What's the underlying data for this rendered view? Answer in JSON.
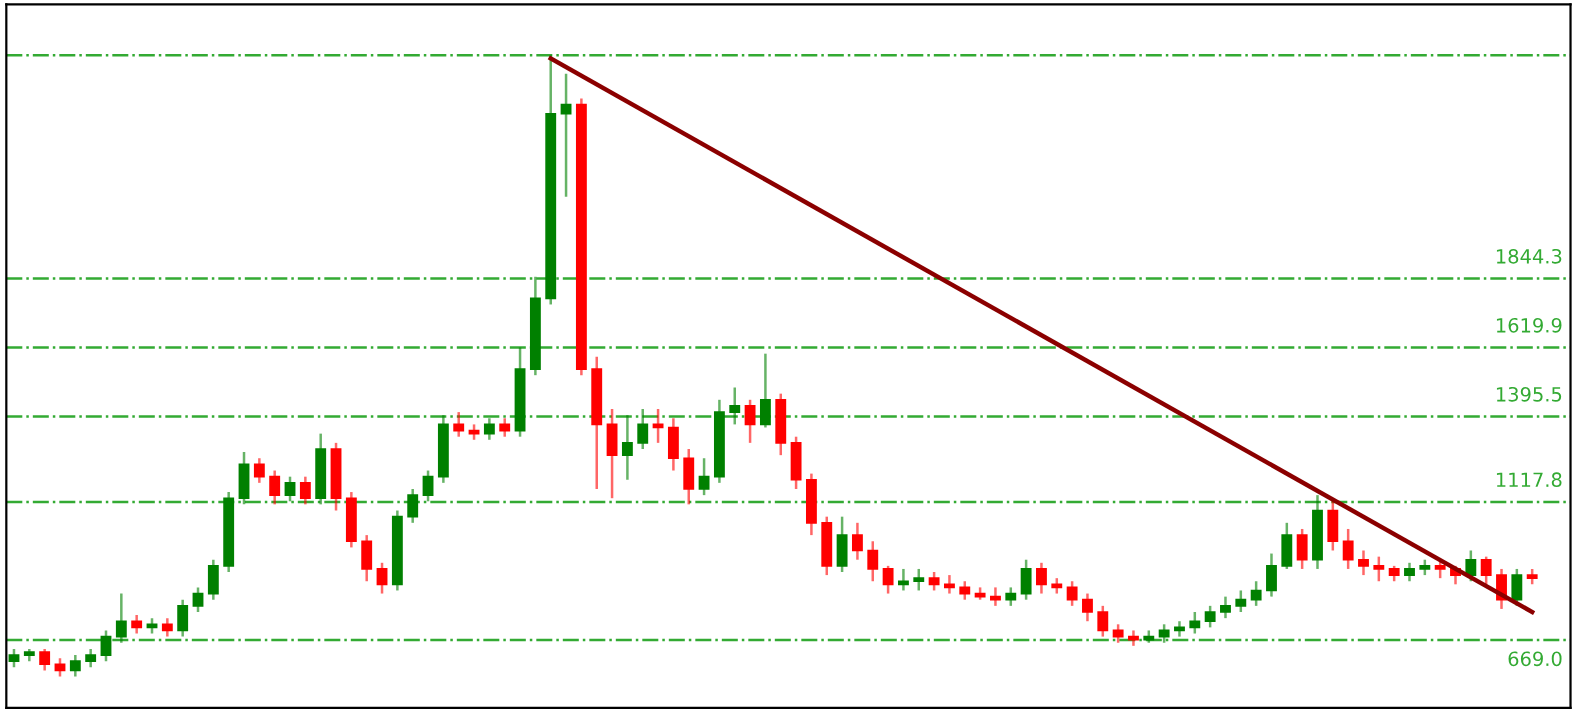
{
  "chart_data": {
    "type": "candlestick",
    "categories": [
      null,
      null,
      null,
      null,
      null,
      null,
      null,
      null,
      null,
      null,
      null,
      null,
      null,
      null,
      null,
      null,
      null,
      null,
      null,
      null,
      null,
      null,
      null,
      null,
      null,
      null,
      null,
      null,
      null,
      null,
      null,
      null,
      null,
      null,
      null,
      null,
      null,
      null,
      null,
      null,
      null,
      null,
      null,
      null,
      null,
      null,
      null,
      null,
      null,
      null,
      null,
      null,
      null,
      null,
      null,
      null,
      null,
      null,
      null,
      null,
      null,
      null,
      null,
      null,
      null,
      null,
      null,
      null,
      null,
      null,
      null,
      null,
      null,
      null,
      null,
      null,
      null,
      null,
      null,
      null,
      null,
      null,
      null,
      null,
      null,
      null,
      null,
      null,
      null,
      null,
      null,
      null,
      null,
      null,
      null,
      null,
      null,
      null,
      null,
      null
    ],
    "ohlc": [
      [
        600,
        640,
        580,
        620
      ],
      [
        620,
        640,
        600,
        630
      ],
      [
        630,
        640,
        570,
        590
      ],
      [
        590,
        610,
        550,
        570
      ],
      [
        570,
        620,
        550,
        600
      ],
      [
        600,
        640,
        580,
        620
      ],
      [
        620,
        700,
        600,
        680
      ],
      [
        680,
        820,
        660,
        730
      ],
      [
        730,
        750,
        690,
        710
      ],
      [
        710,
        740,
        690,
        720
      ],
      [
        720,
        740,
        680,
        700
      ],
      [
        700,
        800,
        680,
        780
      ],
      [
        780,
        840,
        760,
        820
      ],
      [
        820,
        930,
        800,
        910
      ],
      [
        910,
        1150,
        890,
        1130
      ],
      [
        1130,
        1280,
        1110,
        1240
      ],
      [
        1240,
        1260,
        1180,
        1200
      ],
      [
        1200,
        1220,
        1110,
        1140
      ],
      [
        1140,
        1200,
        1120,
        1180
      ],
      [
        1180,
        1200,
        1110,
        1130
      ],
      [
        1130,
        1340,
        1110,
        1290
      ],
      [
        1290,
        1310,
        1090,
        1130
      ],
      [
        1130,
        1150,
        970,
        990
      ],
      [
        990,
        1010,
        860,
        900
      ],
      [
        900,
        920,
        820,
        850
      ],
      [
        850,
        1090,
        830,
        1070
      ],
      [
        1070,
        1160,
        1050,
        1140
      ],
      [
        1140,
        1220,
        1120,
        1200
      ],
      [
        1200,
        1400,
        1180,
        1370
      ],
      [
        1370,
        1410,
        1330,
        1350
      ],
      [
        1350,
        1370,
        1320,
        1340
      ],
      [
        1340,
        1390,
        1320,
        1370
      ],
      [
        1370,
        1390,
        1330,
        1350
      ],
      [
        1350,
        1620,
        1330,
        1550
      ],
      [
        1550,
        1850,
        1530,
        1780
      ],
      [
        1780,
        2570,
        1760,
        2380
      ],
      [
        2380,
        2510,
        2110,
        2410
      ],
      [
        2410,
        2430,
        1530,
        1550
      ],
      [
        1550,
        1590,
        1160,
        1370
      ],
      [
        1370,
        1420,
        1130,
        1270
      ],
      [
        1270,
        1400,
        1190,
        1310
      ],
      [
        1310,
        1420,
        1290,
        1370
      ],
      [
        1370,
        1420,
        1310,
        1360
      ],
      [
        1360,
        1390,
        1220,
        1260
      ],
      [
        1260,
        1290,
        1110,
        1160
      ],
      [
        1160,
        1260,
        1140,
        1200
      ],
      [
        1200,
        1450,
        1180,
        1410
      ],
      [
        1410,
        1490,
        1370,
        1430
      ],
      [
        1430,
        1450,
        1310,
        1370
      ],
      [
        1370,
        1600,
        1360,
        1450
      ],
      [
        1450,
        1470,
        1270,
        1310
      ],
      [
        1310,
        1330,
        1160,
        1190
      ],
      [
        1190,
        1210,
        1010,
        1050
      ],
      [
        1050,
        1070,
        880,
        910
      ],
      [
        910,
        1070,
        890,
        1010
      ],
      [
        1010,
        1050,
        930,
        960
      ],
      [
        960,
        990,
        860,
        900
      ],
      [
        900,
        910,
        820,
        850
      ],
      [
        850,
        900,
        830,
        860
      ],
      [
        860,
        900,
        830,
        870
      ],
      [
        870,
        890,
        830,
        850
      ],
      [
        850,
        880,
        820,
        840
      ],
      [
        840,
        860,
        800,
        820
      ],
      [
        820,
        840,
        800,
        810
      ],
      [
        810,
        840,
        780,
        800
      ],
      [
        800,
        840,
        780,
        820
      ],
      [
        820,
        930,
        800,
        900
      ],
      [
        900,
        920,
        820,
        850
      ],
      [
        850,
        870,
        820,
        840
      ],
      [
        840,
        860,
        780,
        800
      ],
      [
        800,
        820,
        730,
        760
      ],
      [
        760,
        780,
        680,
        700
      ],
      [
        700,
        720,
        660,
        680
      ],
      [
        680,
        700,
        650,
        670
      ],
      [
        670,
        700,
        660,
        680
      ],
      [
        680,
        720,
        660,
        700
      ],
      [
        700,
        730,
        680,
        710
      ],
      [
        710,
        760,
        690,
        730
      ],
      [
        730,
        780,
        710,
        760
      ],
      [
        760,
        810,
        740,
        780
      ],
      [
        780,
        830,
        760,
        800
      ],
      [
        800,
        860,
        780,
        830
      ],
      [
        830,
        950,
        810,
        910
      ],
      [
        910,
        1050,
        900,
        1010
      ],
      [
        1010,
        1030,
        900,
        930
      ],
      [
        930,
        1140,
        900,
        1090
      ],
      [
        1090,
        1130,
        960,
        990
      ],
      [
        990,
        1030,
        900,
        930
      ],
      [
        930,
        960,
        880,
        910
      ],
      [
        910,
        940,
        860,
        900
      ],
      [
        900,
        910,
        860,
        880
      ],
      [
        880,
        920,
        860,
        900
      ],
      [
        900,
        930,
        880,
        910
      ],
      [
        910,
        930,
        870,
        900
      ],
      [
        900,
        910,
        850,
        880
      ],
      [
        880,
        960,
        860,
        930
      ],
      [
        930,
        940,
        850,
        880
      ],
      [
        880,
        900,
        770,
        800
      ],
      [
        800,
        900,
        780,
        880
      ],
      [
        880,
        900,
        850,
        870
      ]
    ],
    "colors": [
      "#008000",
      "#008000",
      "#ff0000",
      "#ff0000",
      "#008000",
      "#008000",
      "#008000",
      "#008000",
      "#ff0000",
      "#008000",
      "#ff0000",
      "#008000",
      "#008000",
      "#008000",
      "#008000",
      "#008000",
      "#ff0000",
      "#ff0000",
      "#008000",
      "#ff0000",
      "#008000",
      "#ff0000",
      "#ff0000",
      "#ff0000",
      "#ff0000",
      "#008000",
      "#008000",
      "#008000",
      "#008000",
      "#ff0000",
      "#ff0000",
      "#008000",
      "#ff0000",
      "#008000",
      "#008000",
      "#008000",
      "#008000",
      "#ff0000",
      "#ff0000",
      "#ff0000",
      "#008000",
      "#008000",
      "#ff0000",
      "#ff0000",
      "#ff0000",
      "#008000",
      "#008000",
      "#008000",
      "#ff0000",
      "#008000",
      "#ff0000",
      "#ff0000",
      "#ff0000",
      "#ff0000",
      "#008000",
      "#ff0000",
      "#ff0000",
      "#ff0000",
      "#008000",
      "#008000",
      "#ff0000",
      "#ff0000",
      "#ff0000",
      "#ff0000",
      "#ff0000",
      "#008000",
      "#008000",
      "#ff0000",
      "#ff0000",
      "#ff0000",
      "#ff0000",
      "#ff0000",
      "#ff0000",
      "#ff0000",
      "#008000",
      "#008000",
      "#008000",
      "#008000",
      "#008000",
      "#008000",
      "#008000",
      "#008000",
      "#008000",
      "#008000",
      "#ff0000",
      "#008000",
      "#ff0000",
      "#ff0000",
      "#ff0000",
      "#ff0000",
      "#ff0000",
      "#008000",
      "#008000",
      "#ff0000",
      "#ff0000",
      "#008000",
      "#ff0000",
      "#ff0000",
      "#008000",
      "#ff0000"
    ],
    "series": [
      {
        "type": "line",
        "color": "#8b0000",
        "values": [
          null,
          null,
          null,
          null,
          null,
          null,
          null,
          null,
          null,
          null,
          null,
          null,
          null,
          null,
          null,
          null,
          null,
          null,
          null,
          null,
          null,
          null,
          null,
          null,
          null,
          null,
          null,
          null,
          null,
          null,
          null,
          null,
          null,
          null,
          null,
          2560,
          null,
          null,
          null,
          null,
          null,
          null,
          null,
          null,
          null,
          null,
          null,
          null,
          null,
          null,
          null,
          null,
          null,
          null,
          null,
          null,
          null,
          null,
          null,
          null,
          null,
          null,
          null,
          null,
          null,
          null,
          null,
          null,
          null,
          null,
          null,
          null,
          null,
          null,
          null,
          null,
          null,
          null,
          null,
          null,
          null,
          null,
          null,
          null,
          null,
          null,
          null,
          null,
          null,
          null,
          null,
          null,
          null,
          null,
          null,
          null,
          null,
          null,
          null,
          760
        ]
      }
    ],
    "ref_lines": [
      {
        "axis": "y",
        "value": 2570,
        "label": null,
        "color": "#33aa33",
        "line_style": "dashdot"
      },
      {
        "axis": "y",
        "value": 1844.3,
        "label": "1844.3",
        "color": "#33aa33",
        "line_style": "dashdot"
      },
      {
        "axis": "y",
        "value": 1619.9,
        "label": "1619.9",
        "color": "#33aa33",
        "line_style": "dashdot"
      },
      {
        "axis": "y",
        "value": 1395.5,
        "label": "1395.5",
        "color": "#33aa33",
        "line_style": "dashdot"
      },
      {
        "axis": "y",
        "value": 1117.8,
        "label": "1117.8",
        "color": "#33aa33",
        "line_style": "dashdot"
      },
      {
        "axis": "y",
        "value": 669.0,
        "label": "669.0",
        "color": "#33aa33",
        "line_style": "dashdot"
      }
    ],
    "ylim": [
      448,
      2736
    ],
    "tick_labels": false,
    "legend": false
  }
}
